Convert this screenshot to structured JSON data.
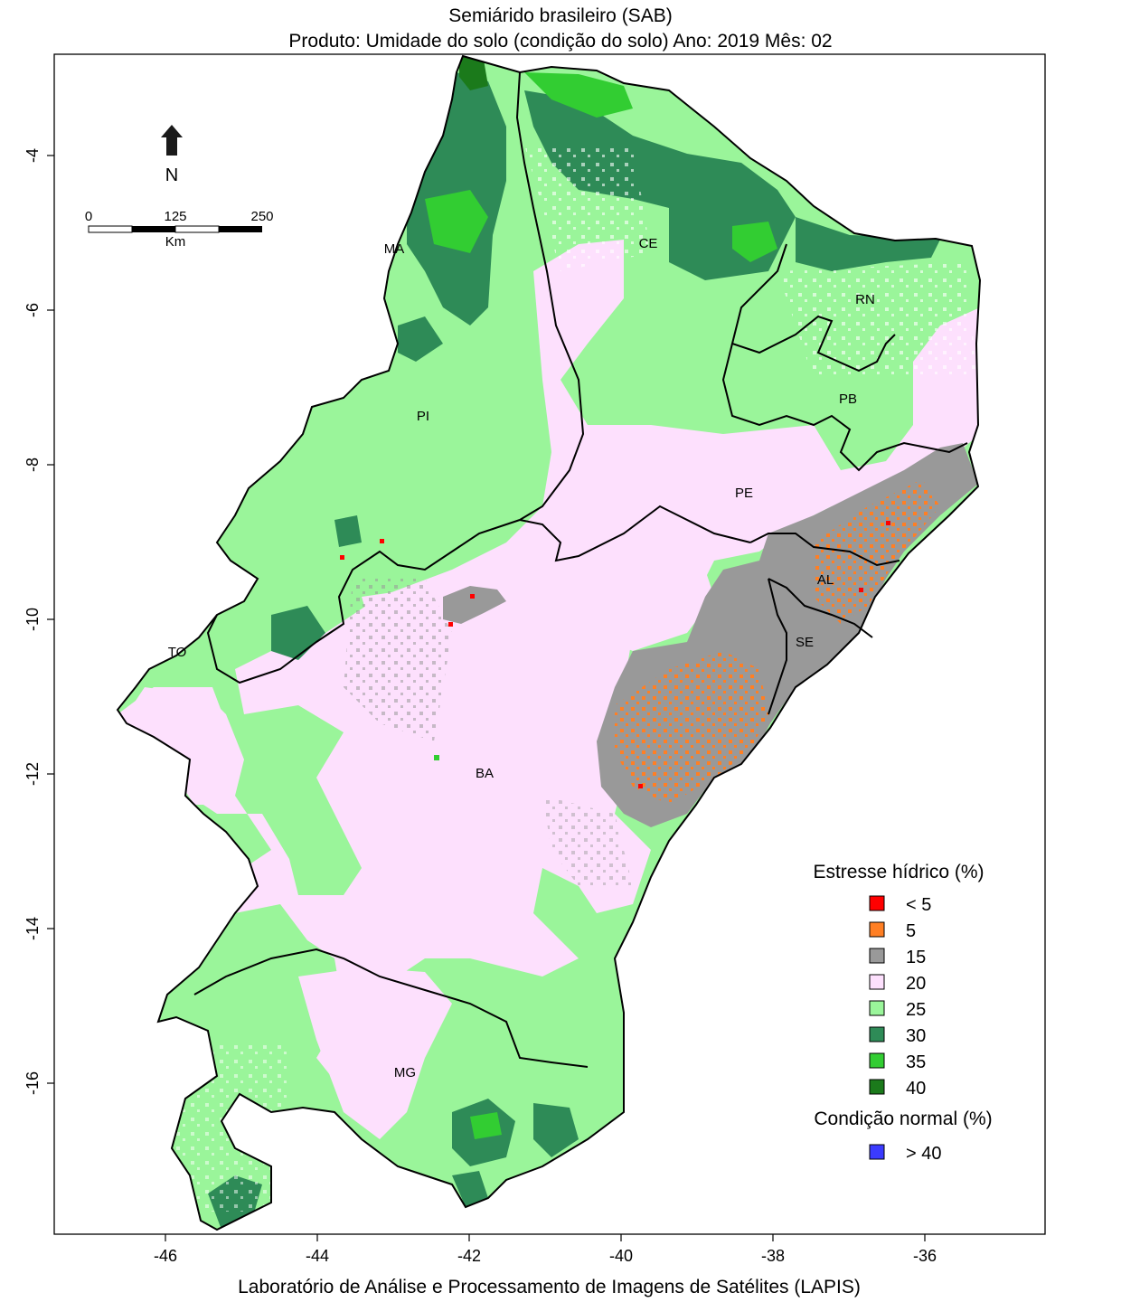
{
  "title_line1": "Semiárido brasileiro (SAB)",
  "title_line2": "Produto: Umidade do solo (condição do solo)     Ano:  2019     Mês:  02",
  "footer": "Laboratório de Análise e Processamento de Imagens de Satélites (LAPIS)",
  "x_ticks": [
    "-46",
    "-44",
    "-42",
    "-40",
    "-38",
    "-36"
  ],
  "y_ticks": [
    "-4",
    "-6",
    "-8",
    "-10",
    "-12",
    "-14",
    "-16"
  ],
  "north_label": "N",
  "scale_bar": {
    "ticks": [
      "0",
      "125",
      "250"
    ],
    "unit": "Km"
  },
  "states": [
    "MA",
    "CE",
    "RN",
    "PI",
    "PB",
    "PE",
    "AL",
    "TO",
    "SE",
    "BA",
    "MG"
  ],
  "legend": {
    "stress_title": "Estresse hídrico (%)",
    "stress_items": [
      {
        "label": "< 5",
        "color": "#ff0000"
      },
      {
        "label": "5",
        "color": "#ff7f24"
      },
      {
        "label": "15",
        "color": "#999999"
      },
      {
        "label": "20",
        "color": "#fde0fd"
      },
      {
        "label": "25",
        "color": "#9af59a"
      },
      {
        "label": "30",
        "color": "#2e8b57"
      },
      {
        "label": "35",
        "color": "#32cd32"
      },
      {
        "label": "40",
        "color": "#1b7a1b"
      }
    ],
    "normal_title": "Condição normal (%)",
    "normal_items": [
      {
        "label": "> 40",
        "color": "#3b3bff"
      }
    ]
  }
}
